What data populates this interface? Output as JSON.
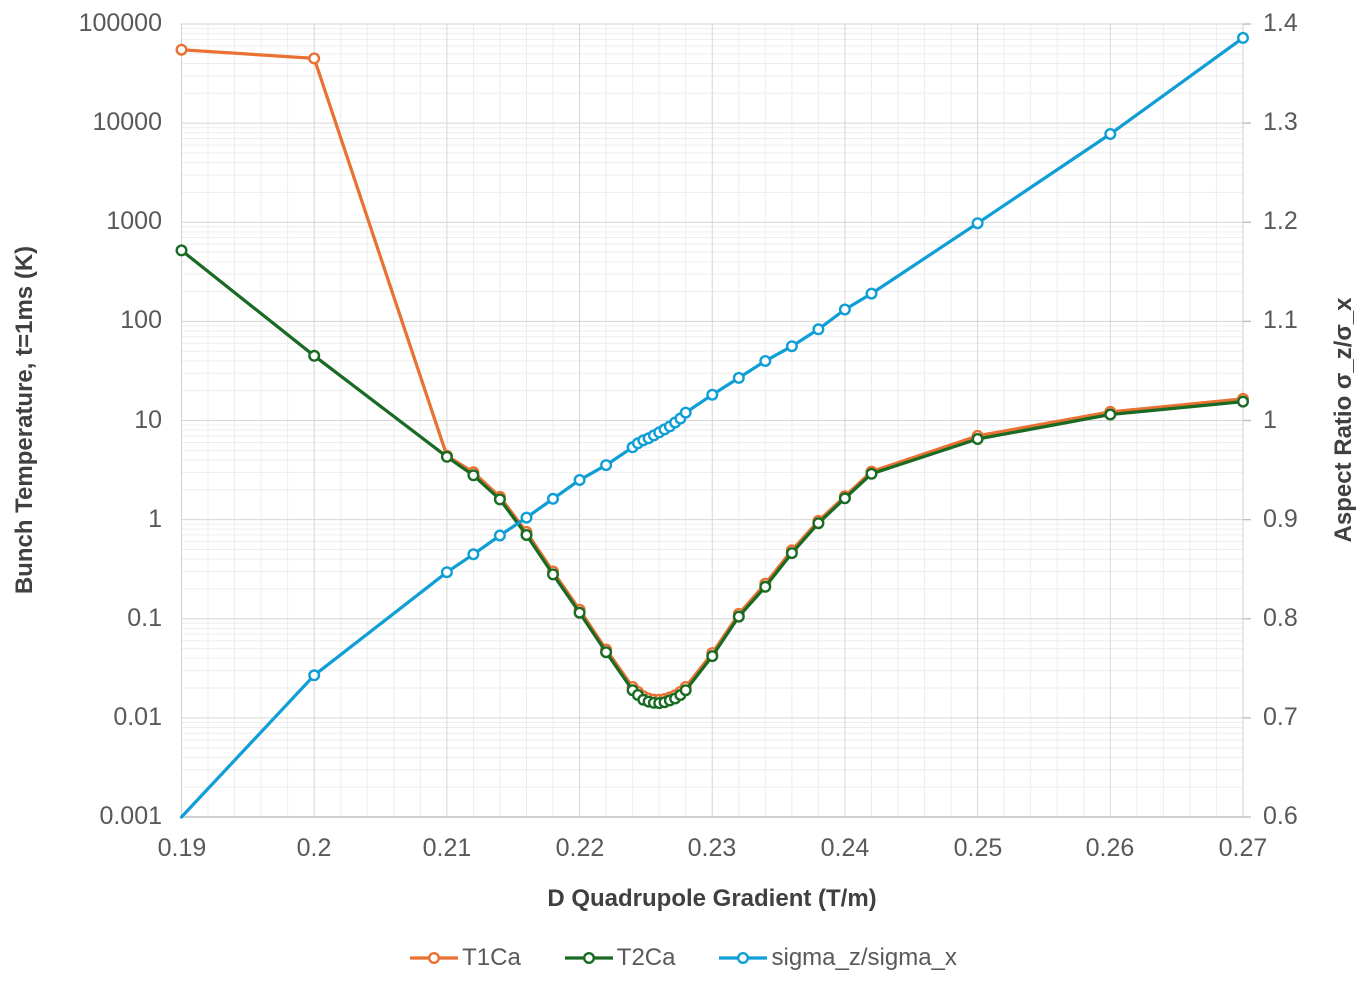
{
  "chart_data": {
    "type": "line",
    "title": "",
    "x_axis": {
      "label": "D Quadrupole Gradient (T/m)",
      "min": 0.19,
      "max": 0.27,
      "tick_step": 0.01,
      "minor_step": 0.002,
      "ticks": [
        "0.19",
        "0.2",
        "0.21",
        "0.22",
        "0.23",
        "0.24",
        "0.25",
        "0.26",
        "0.27"
      ]
    },
    "left_axis": {
      "label": "Bunch Temperature, t=1ms (K)",
      "scale": "log",
      "min": 0.001,
      "max": 100000,
      "ticks": [
        "100000",
        "10000",
        "1000",
        "100",
        "10",
        "1",
        "0.1",
        "0.01",
        "0.001"
      ]
    },
    "right_axis": {
      "label": "Aspect Ratio σ_z/σ_x",
      "scale": "linear",
      "min": 0.6,
      "max": 1.4,
      "tick_step": 0.1,
      "ticks": [
        "1.4",
        "1.3",
        "1.2",
        "1.1",
        "1",
        "0.9",
        "0.8",
        "0.7",
        "0.6"
      ]
    },
    "grid": {
      "major_color": "#D6D6D6",
      "minor_color": "#EDEDED",
      "border_color": "#D0D0D0",
      "axis_line_color": "#BFBFBF"
    },
    "legend_position": "bottom",
    "x": [
      0.19,
      0.2,
      0.21,
      0.212,
      0.214,
      0.216,
      0.218,
      0.22,
      0.222,
      0.224,
      0.2244,
      0.2248,
      0.2252,
      0.2256,
      0.226,
      0.2264,
      0.2268,
      0.2272,
      0.2276,
      0.228,
      0.23,
      0.232,
      0.234,
      0.236,
      0.238,
      0.24,
      0.242,
      0.25,
      0.26,
      0.27
    ],
    "series": [
      {
        "name": "T1Ca",
        "color": "#E97132",
        "axis": "left",
        "values": [
          55000,
          45000,
          4.4,
          3.0,
          1.7,
          0.75,
          0.3,
          0.123,
          0.049,
          0.0205,
          0.0183,
          0.0165,
          0.0157,
          0.0153,
          0.0152,
          0.0155,
          0.0161,
          0.0169,
          0.0183,
          0.0205,
          0.045,
          0.112,
          0.225,
          0.49,
          0.97,
          1.72,
          3.05,
          7.0,
          12.2,
          16.5
        ]
      },
      {
        "name": "T2Ca",
        "color": "#196B24",
        "axis": "left",
        "values": [
          520,
          45,
          4.3,
          2.8,
          1.6,
          0.7,
          0.28,
          0.115,
          0.046,
          0.019,
          0.017,
          0.0152,
          0.0146,
          0.0142,
          0.0141,
          0.0144,
          0.015,
          0.0157,
          0.017,
          0.019,
          0.042,
          0.105,
          0.21,
          0.46,
          0.92,
          1.64,
          2.9,
          6.5,
          11.5,
          15.5
        ]
      },
      {
        "name": "sigma_z/sigma_x",
        "color": "#0F9ED5",
        "axis": "right",
        "skip_first_marker": true,
        "values": [
          0.6,
          0.743,
          0.847,
          0.865,
          0.884,
          0.902,
          0.921,
          0.94,
          0.955,
          0.973,
          0.977,
          0.98,
          0.982,
          0.985,
          0.988,
          0.991,
          0.994,
          0.998,
          1.002,
          1.008,
          1.026,
          1.043,
          1.06,
          1.075,
          1.092,
          1.112,
          1.128,
          1.199,
          1.289,
          1.386
        ]
      }
    ]
  }
}
